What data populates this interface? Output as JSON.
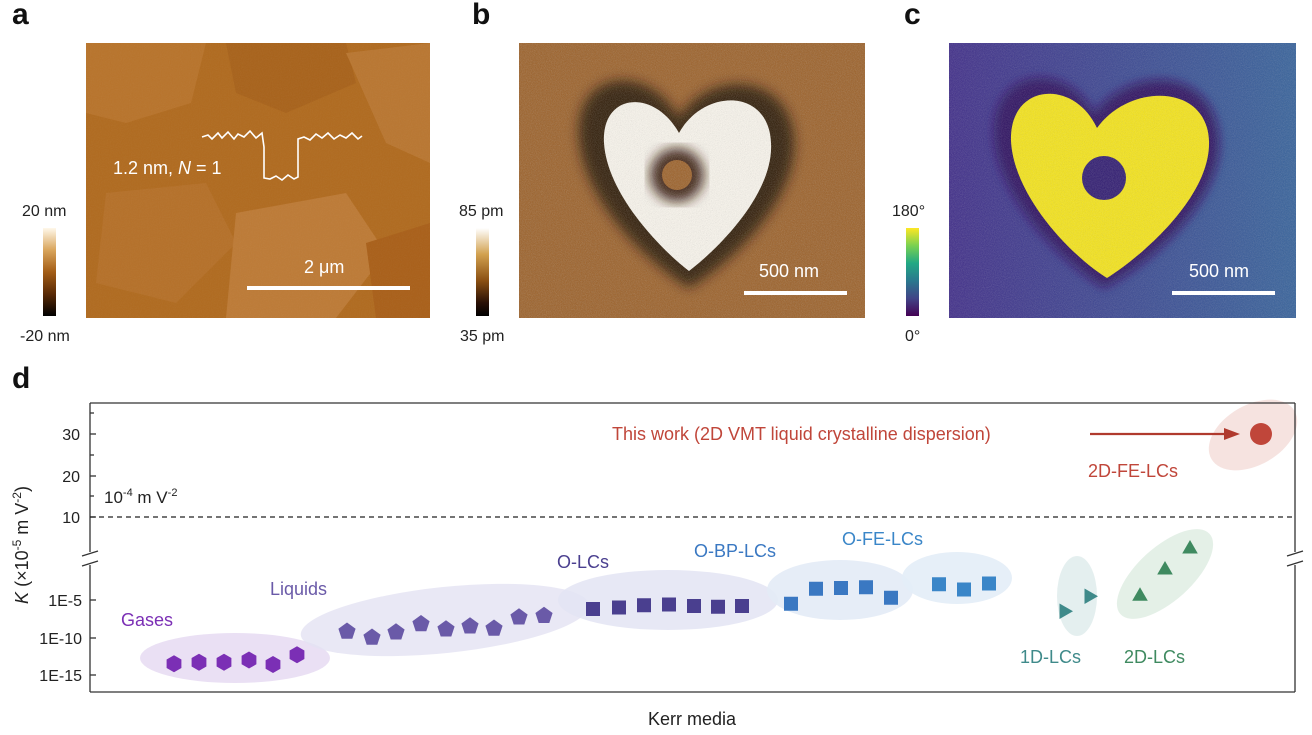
{
  "panels": {
    "a": {
      "label": "a",
      "colorbar": {
        "max": "20 nm",
        "min": "-20 nm"
      },
      "profile_label_prefix": "1.2 nm, ",
      "profile_label_italic": "N",
      "profile_label_suffix": " = 1",
      "scalebar": "2 μm"
    },
    "b": {
      "label": "b",
      "colorbar": {
        "max": "85 pm",
        "min": "35 pm"
      },
      "scalebar": "500 nm"
    },
    "c": {
      "label": "c",
      "colorbar": {
        "max": "180°",
        "min": "0°"
      },
      "scalebar": "500 nm"
    },
    "d": {
      "label": "d"
    }
  },
  "colors": {
    "gases": "#7b2fb5",
    "liquids": "#6a5aa8",
    "olcs": "#4a3f8f",
    "obp": "#3a78c2",
    "ofe": "#3a86c8",
    "lc1d": "#3f8a8a",
    "lc2d": "#3f8a60",
    "thiswork": "#c0463a"
  },
  "chart_data": {
    "type": "scatter",
    "xlabel": "Kerr media",
    "ylabel_prefix": "K",
    "ylabel_units": "(×10",
    "ylabel_exp": "-5",
    "ylabel_rest": " m V",
    "ylabel_exp2": "-2",
    "ylabel_close": ")",
    "upper_axis": {
      "ylim": [
        0,
        36
      ],
      "ticks": [
        "10",
        "20",
        "30"
      ]
    },
    "lower_axis": {
      "scale": "log",
      "ticks": [
        "1E-5",
        "1E-10",
        "1E-15"
      ]
    },
    "reference_line": {
      "value": 10,
      "label_prefix": "10",
      "label_exp": "-4",
      "label_mid": " m V",
      "label_exp2": "-2"
    },
    "annotation": "This work (2D VMT liquid crystalline dispersion)",
    "series": [
      {
        "name": "Gases",
        "marker": "hexagon",
        "log10_values": [
          -13.5,
          -13.3,
          -13.3,
          -13.0,
          -13.6,
          -12.3
        ]
      },
      {
        "name": "Liquids",
        "marker": "pentagon",
        "log10_values": [
          -9.2,
          -10.0,
          -9.3,
          -8.2,
          -8.9,
          -8.5,
          -8.8,
          -7.3,
          -7.1
        ]
      },
      {
        "name": "O-LCs",
        "marker": "square",
        "log10_values": [
          -6.2,
          -6.0,
          -5.7,
          -5.6,
          -5.8,
          -5.9,
          -5.8
        ]
      },
      {
        "name": "O-BP-LCs",
        "marker": "square",
        "log10_values": [
          -5.5,
          -3.5,
          -3.4,
          -3.3,
          -4.7
        ]
      },
      {
        "name": "O-FE-LCs",
        "marker": "square",
        "log10_values": [
          -2.9,
          -3.6,
          -2.8
        ]
      },
      {
        "name": "1D-LCs",
        "marker": "triangle-right",
        "log10_values": [
          -6.5,
          -4.5
        ]
      },
      {
        "name": "2D-LCs",
        "marker": "triangle-up",
        "log10_values": [
          -4.5,
          -1.0,
          1.8
        ]
      },
      {
        "name": "2D-FE-LCs",
        "marker": "circle",
        "values": [
          30
        ]
      }
    ]
  }
}
